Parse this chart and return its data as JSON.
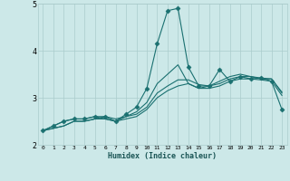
{
  "xlabel": "Humidex (Indice chaleur)",
  "xlim": [
    -0.5,
    23.5
  ],
  "ylim": [
    2,
    5
  ],
  "yticks": [
    2,
    3,
    4,
    5
  ],
  "xticks": [
    0,
    1,
    2,
    3,
    4,
    5,
    6,
    7,
    8,
    9,
    10,
    11,
    12,
    13,
    14,
    15,
    16,
    17,
    18,
    19,
    20,
    21,
    22,
    23
  ],
  "bg_color": "#cce8e8",
  "grid_color": "#aacccc",
  "line_color": "#1a7070",
  "lines": [
    {
      "x": [
        0,
        1,
        2,
        3,
        4,
        5,
        6,
        7,
        8,
        9,
        10,
        11,
        12,
        13,
        14,
        15,
        16,
        17,
        18,
        19,
        20,
        21,
        22,
        23
      ],
      "y": [
        2.3,
        2.35,
        2.4,
        2.5,
        2.5,
        2.55,
        2.55,
        2.5,
        2.55,
        2.6,
        2.75,
        3.0,
        3.15,
        3.25,
        3.3,
        3.2,
        3.2,
        3.25,
        3.35,
        3.4,
        3.4,
        3.38,
        3.35,
        3.05
      ],
      "marker": null
    },
    {
      "x": [
        0,
        1,
        2,
        3,
        4,
        5,
        6,
        7,
        8,
        9,
        10,
        11,
        12,
        13,
        14,
        15,
        16,
        17,
        18,
        19,
        20,
        21,
        22,
        23
      ],
      "y": [
        2.3,
        2.35,
        2.4,
        2.5,
        2.5,
        2.55,
        2.6,
        2.55,
        2.6,
        2.65,
        2.8,
        3.1,
        3.25,
        3.38,
        3.38,
        3.28,
        3.25,
        3.3,
        3.4,
        3.45,
        3.45,
        3.4,
        3.4,
        3.1
      ],
      "marker": null
    },
    {
      "x": [
        0,
        1,
        2,
        3,
        4,
        5,
        6,
        7,
        8,
        9,
        10,
        11,
        12,
        13,
        14,
        15,
        16,
        17,
        18,
        19,
        20,
        21,
        22,
        23
      ],
      "y": [
        2.3,
        2.4,
        2.5,
        2.55,
        2.55,
        2.6,
        2.55,
        2.5,
        2.6,
        2.7,
        2.9,
        3.3,
        3.5,
        3.7,
        3.3,
        3.2,
        3.25,
        3.35,
        3.45,
        3.5,
        3.45,
        3.42,
        3.4,
        3.12
      ],
      "marker": null
    },
    {
      "x": [
        0,
        1,
        2,
        3,
        4,
        5,
        6,
        7,
        8,
        9,
        10,
        11,
        12,
        13,
        14,
        15,
        16,
        17,
        18,
        19,
        20,
        21,
        22,
        23
      ],
      "y": [
        2.3,
        2.4,
        2.5,
        2.55,
        2.55,
        2.6,
        2.6,
        2.5,
        2.65,
        2.8,
        3.2,
        4.15,
        4.85,
        4.9,
        3.65,
        3.25,
        3.25,
        3.6,
        3.35,
        3.45,
        3.4,
        3.42,
        3.35,
        2.75
      ],
      "marker": "D",
      "markersize": 2.5
    }
  ]
}
